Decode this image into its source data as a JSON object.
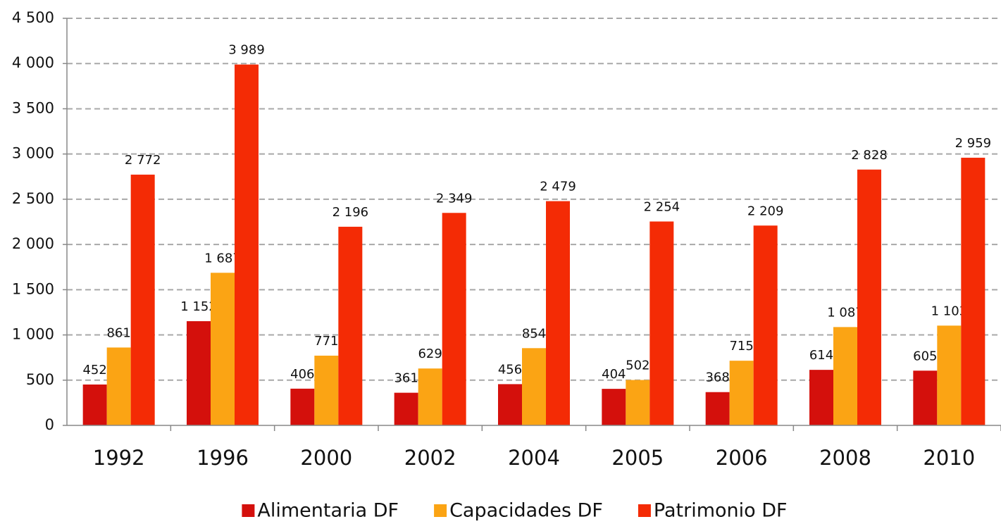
{
  "chart_data": {
    "type": "bar",
    "categories": [
      "1992",
      "1996",
      "2000",
      "2002",
      "2004",
      "2005",
      "2006",
      "2008",
      "2010"
    ],
    "series": [
      {
        "name": "Alimentaria DF",
        "color": "#d4100c",
        "values": [
          452,
          1152,
          406,
          361,
          456,
          404,
          368,
          614,
          605
        ],
        "value_labels": [
          "452",
          "1 152",
          "406",
          "361",
          "456",
          "404",
          "368",
          "614",
          "605"
        ]
      },
      {
        "name": "Capacidades DF",
        "color": "#fba414",
        "values": [
          861,
          1687,
          771,
          629,
          854,
          502,
          715,
          1087,
          1103
        ],
        "value_labels": [
          "861",
          "1 687",
          "771",
          "629",
          "854",
          "502",
          "715",
          "1 087",
          "1 103"
        ]
      },
      {
        "name": "Patrimonio DF",
        "color": "#f42b05",
        "values": [
          2772,
          3989,
          2196,
          2349,
          2479,
          2254,
          2209,
          2828,
          2959
        ],
        "value_labels": [
          "2 772",
          "3 989",
          "2 196",
          "2 349",
          "2 479",
          "2 254",
          "2 209",
          "2 828",
          "2 959"
        ]
      }
    ],
    "ylim": [
      0,
      4500
    ],
    "yticks": [
      0,
      500,
      {
        "value": 1000,
        "label": "1 000"
      },
      {
        "value": 1500,
        "label": "1 500"
      },
      {
        "value": 2000,
        "label": "2 000"
      },
      {
        "value": 2500,
        "label": "2 500"
      },
      {
        "value": 3000,
        "label": "3 000"
      },
      {
        "value": 3500,
        "label": "3 500"
      },
      {
        "value": 4000,
        "label": "4 000"
      },
      {
        "value": 4500,
        "label": "4 500"
      }
    ],
    "grid": true,
    "legend": "bottom"
  }
}
